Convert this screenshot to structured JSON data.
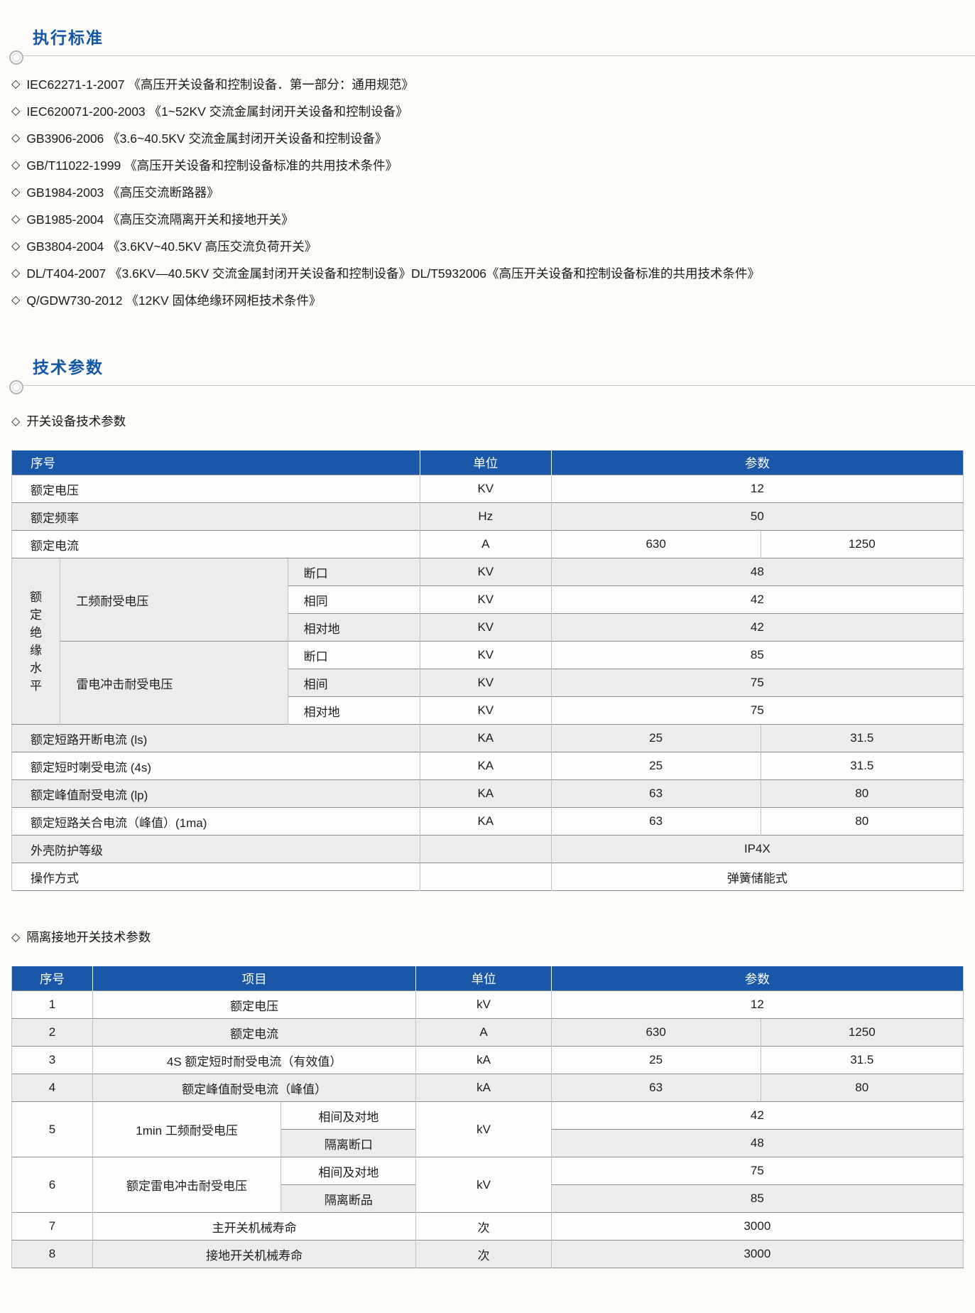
{
  "glyphs": {
    "diamond": "◇"
  },
  "colors": {
    "accent_blue": "#1A57A8",
    "title_blue": "#1356A8",
    "row_gray": "#EDECEA"
  },
  "standards_section": {
    "title": "执行标准",
    "items": [
      "IEC62271-1-2007 《高压开关设备和控制设备．第一部分：通用规范》",
      "IEC620071-200-2003 《1~52KV 交流金属封闭开关设备和控制设备》",
      "GB3906-2006 《3.6~40.5KV 交流金属封闭开关设备和控制设备》",
      "GB/T11022-1999 《高压开关设备和控制设备标准的共用技术条件》",
      "GB1984-2003 《高压交流断路器》",
      "GB1985-2004 《高压交流隔离开关和接地开关》",
      "GB3804-2004 《3.6KV~40.5KV 高压交流负荷开关》",
      "DL/T404-2007 《3.6KV—40.5KV 交流金属封闭开关设备和控制设备》DL/T5932006《高压开关设备和控制设备标准的共用技术条件》",
      "Q/GDW730-2012 《12KV 固体绝缘环网柜技术条件》"
    ]
  },
  "tech_section": {
    "title": "技术参数",
    "switchgear": {
      "subtitle": "开关设备技术参数",
      "headers": {
        "no": "序号",
        "unit": "单位",
        "param": "参数"
      },
      "rows": {
        "rated_voltage": {
          "label": "额定电压",
          "unit": "KV",
          "value": "12"
        },
        "rated_frequency": {
          "label": "额定频率",
          "unit": "Hz",
          "value": "50"
        },
        "rated_current": {
          "label": "额定电流",
          "unit": "A",
          "v1": "630",
          "v2": "1250"
        },
        "insulation_group": "额定绝缘水平",
        "power_freq": {
          "label": "工频耐受电压",
          "r1": {
            "name": "断口",
            "unit": "KV",
            "value": "48"
          },
          "r2": {
            "name": "相同",
            "unit": "KV",
            "value": "42"
          },
          "r3": {
            "name": "相对地",
            "unit": "KV",
            "value": "42"
          }
        },
        "lightning": {
          "label": "雷电冲击耐受电压",
          "r1": {
            "name": "断口",
            "unit": "KV",
            "value": "85"
          },
          "r2": {
            "name": "相间",
            "unit": "KV",
            "value": "75"
          },
          "r3": {
            "name": "相对地",
            "unit": "KV",
            "value": "75"
          }
        },
        "breaking": {
          "label": "额定短路开断电流 (ls)",
          "unit": "KA",
          "v1": "25",
          "v2": "31.5"
        },
        "short_time": {
          "label": "额定短时喇受电流 (4s)",
          "unit": "KA",
          "v1": "25",
          "v2": "31.5"
        },
        "peak": {
          "label": "额定峰值耐受电流 (lp)",
          "unit": "KA",
          "v1": "63",
          "v2": "80"
        },
        "making": {
          "label": "额定短路关合电流（峰值）(1ma)",
          "unit": "KA",
          "v1": "63",
          "v2": "80"
        },
        "ip": {
          "label": "外壳防护等级",
          "value": "IP4X"
        },
        "operation": {
          "label": "操作方式",
          "value": "弹簧储能式"
        }
      }
    },
    "isolator": {
      "subtitle": "隔离接地开关技术参数",
      "headers": {
        "no": "序号",
        "item": "项目",
        "unit": "单位",
        "param": "参数"
      },
      "rows": {
        "r1": {
          "no": "1",
          "item": "额定电压",
          "unit": "kV",
          "value": "12"
        },
        "r2": {
          "no": "2",
          "item": "额定电流",
          "unit": "A",
          "v1": "630",
          "v2": "1250"
        },
        "r3": {
          "no": "3",
          "item": "4S 额定短时耐受电流（有效值）",
          "unit": "kA",
          "v1": "25",
          "v2": "31.5"
        },
        "r4": {
          "no": "4",
          "item": "额定峰值耐受电流（峰值）",
          "unit": "kA",
          "v1": "63",
          "v2": "80"
        },
        "r5": {
          "no": "5",
          "item": "1min 工频耐受电压",
          "unit": "kV",
          "sub1": "相间及对地",
          "val1": "42",
          "sub2": "隔离断口",
          "val2": "48"
        },
        "r6": {
          "no": "6",
          "item": "额定雷电冲击耐受电压",
          "unit": "kV",
          "sub1": "相间及对地",
          "val1": "75",
          "sub2": "隔离断品",
          "val2": "85"
        },
        "r7": {
          "no": "7",
          "item": "主开关机械寿命",
          "unit": "次",
          "value": "3000"
        },
        "r8": {
          "no": "8",
          "item": "接地开关机械寿命",
          "unit": "次",
          "value": "3000"
        }
      }
    }
  }
}
